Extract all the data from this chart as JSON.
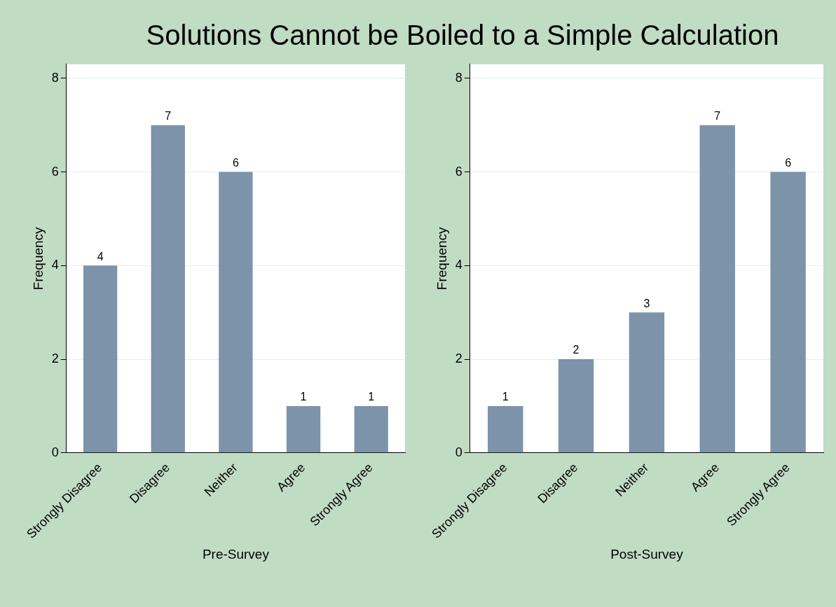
{
  "chart_data": [
    {
      "type": "bar",
      "title": "Solutions Cannot be Boiled to a Simple Calculation",
      "xlabel": "Pre-Survey",
      "ylabel": "Frequency",
      "categories": [
        "Strongly Disagree",
        "Disagree",
        "Neither",
        "Agree",
        "Strongly Agree"
      ],
      "values": [
        4,
        7,
        6,
        1,
        1
      ],
      "color": "#7d93aa",
      "ylim": [
        0,
        8.3
      ],
      "yticks": [
        0,
        2,
        4,
        6,
        8
      ],
      "grid": "y",
      "data_labels": true,
      "legend": false
    },
    {
      "type": "bar",
      "xlabel": "Post-Survey",
      "ylabel": "Frequency",
      "categories": [
        "Strongly Disagree",
        "Disagree",
        "Neither",
        "Agree",
        "Strongly Agree"
      ],
      "values": [
        1,
        2,
        3,
        7,
        6
      ],
      "color": "#7d93aa",
      "ylim": [
        0,
        8.3
      ],
      "yticks": [
        0,
        2,
        4,
        6,
        8
      ],
      "grid": "y",
      "data_labels": true,
      "legend": false
    }
  ]
}
